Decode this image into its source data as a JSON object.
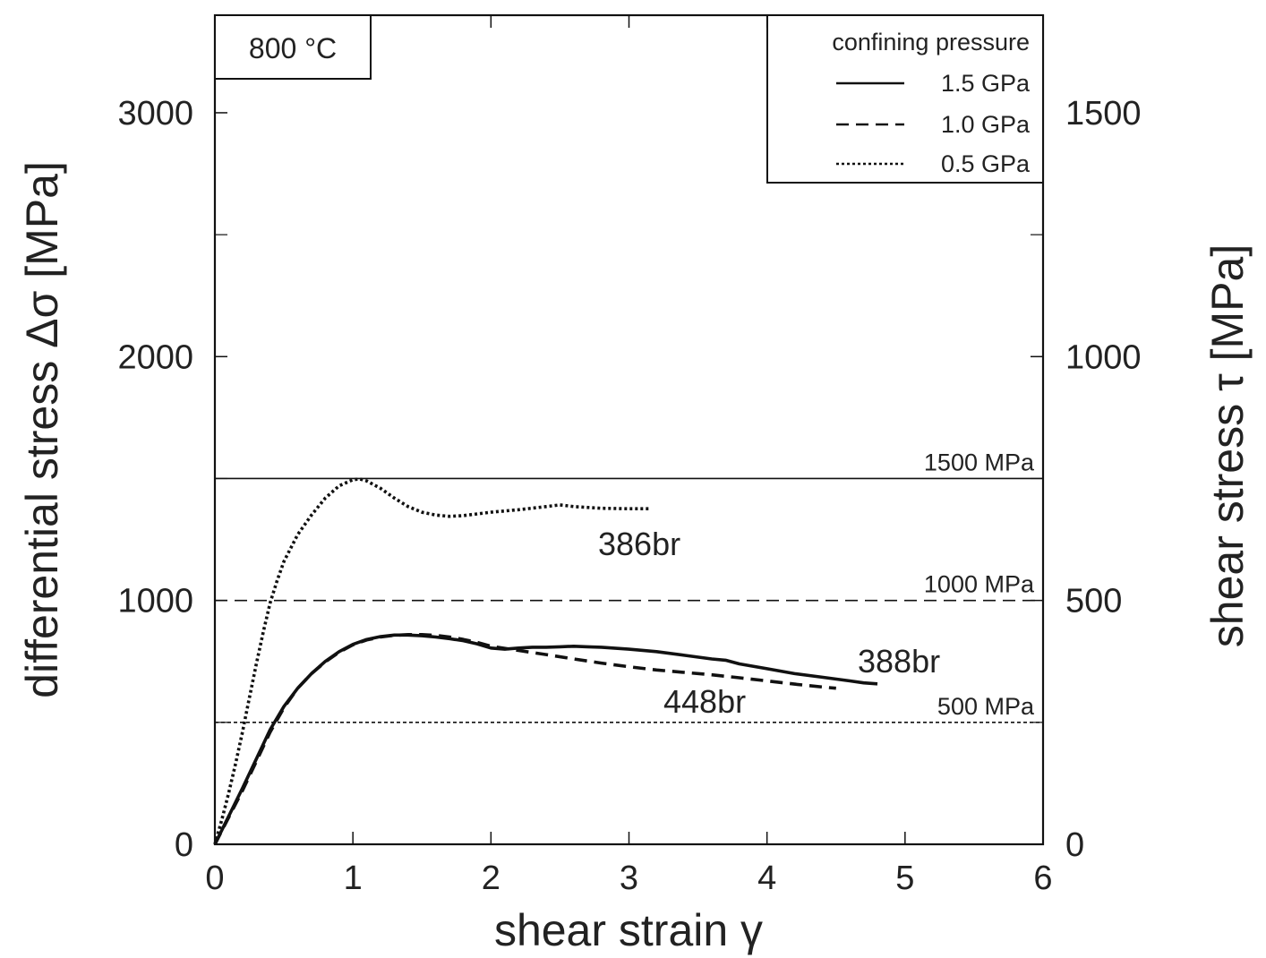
{
  "chart_data": {
    "type": "line",
    "xlabel": "shear strain γ",
    "ylabel": "differential stress Δσ [MPa]",
    "y2label": "shear stress τ [MPa]",
    "xlim": [
      0,
      6
    ],
    "ylim": [
      0,
      3400
    ],
    "y2lim": [
      0,
      1700
    ],
    "x_ticks": [
      0,
      1,
      2,
      3,
      4,
      5,
      6
    ],
    "y_ticks": [
      0,
      1000,
      2000,
      3000
    ],
    "y2_ticks": [
      0,
      500,
      1000,
      1500
    ],
    "grid": false,
    "legend_title": "confining pressure",
    "legend_position": "top-right",
    "annotation": "800 °C",
    "reference_lines": [
      {
        "y": 1500,
        "label": "1500 MPa",
        "style": "solid"
      },
      {
        "y": 1000,
        "label": "1000 MPa",
        "style": "dashed"
      },
      {
        "y": 500,
        "label": "500 MPa",
        "style": "dotted"
      }
    ],
    "series": [
      {
        "name": "1.5 GPa",
        "label": "388br",
        "style": "solid",
        "x": [
          0,
          0.1,
          0.2,
          0.3,
          0.4,
          0.5,
          0.6,
          0.7,
          0.8,
          0.9,
          1.0,
          1.1,
          1.2,
          1.3,
          1.4,
          1.5,
          1.6,
          1.7,
          1.8,
          1.9,
          2.0,
          2.1,
          2.2,
          2.3,
          2.4,
          2.5,
          2.6,
          2.7,
          2.8,
          3.0,
          3.2,
          3.4,
          3.6,
          3.7,
          3.8,
          4.0,
          4.2,
          4.4,
          4.6,
          4.7,
          4.8
        ],
        "y": [
          0,
          115,
          230,
          350,
          470,
          565,
          640,
          700,
          750,
          790,
          820,
          840,
          852,
          858,
          858,
          855,
          850,
          843,
          835,
          822,
          805,
          800,
          805,
          808,
          808,
          810,
          812,
          810,
          808,
          800,
          790,
          775,
          760,
          755,
          740,
          720,
          700,
          685,
          670,
          662,
          658
        ]
      },
      {
        "name": "1.0 GPa",
        "label": "448br",
        "style": "dashed",
        "x": [
          0,
          0.1,
          0.2,
          0.3,
          0.4,
          0.5,
          0.6,
          0.7,
          0.8,
          0.9,
          1.0,
          1.1,
          1.2,
          1.3,
          1.4,
          1.5,
          1.6,
          1.7,
          1.8,
          1.9,
          2.0,
          2.2,
          2.4,
          2.6,
          2.8,
          3.0,
          3.2,
          3.4,
          3.6,
          3.8,
          4.0,
          4.2,
          4.4,
          4.5
        ],
        "y": [
          0,
          110,
          220,
          340,
          460,
          560,
          640,
          700,
          748,
          788,
          818,
          838,
          850,
          857,
          860,
          860,
          857,
          850,
          840,
          828,
          812,
          795,
          778,
          760,
          743,
          728,
          715,
          705,
          695,
          683,
          670,
          657,
          645,
          640
        ]
      },
      {
        "name": "0.5 GPa",
        "label": "386br",
        "style": "dotted",
        "x": [
          0,
          0.05,
          0.1,
          0.15,
          0.2,
          0.25,
          0.3,
          0.35,
          0.4,
          0.45,
          0.5,
          0.6,
          0.7,
          0.8,
          0.9,
          1.0,
          1.05,
          1.1,
          1.2,
          1.3,
          1.4,
          1.5,
          1.6,
          1.7,
          1.8,
          1.9,
          2.0,
          2.2,
          2.4,
          2.5,
          2.6,
          2.8,
          3.0,
          3.15
        ],
        "y": [
          0,
          100,
          210,
          330,
          460,
          600,
          740,
          870,
          990,
          1080,
          1160,
          1270,
          1350,
          1420,
          1470,
          1495,
          1498,
          1490,
          1460,
          1420,
          1385,
          1362,
          1350,
          1345,
          1348,
          1355,
          1362,
          1372,
          1385,
          1392,
          1385,
          1378,
          1376,
          1376
        ]
      }
    ]
  }
}
